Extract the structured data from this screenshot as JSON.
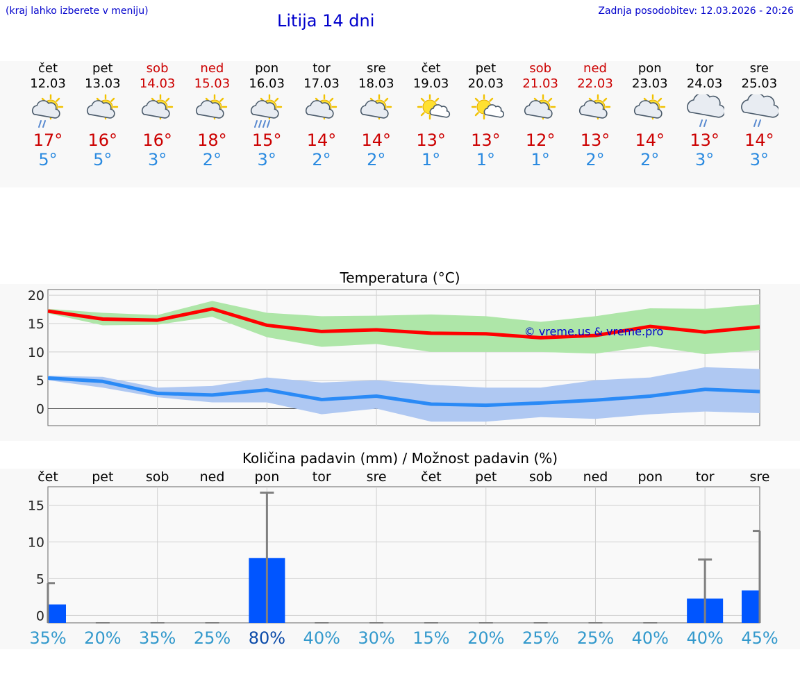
{
  "header": {
    "menu_note": "(kraj lahko izberete v meniju)",
    "title": "Litija 14 dni",
    "update": "Zadnja posodobitev: 12.03.2026 - 20:26"
  },
  "days": [
    {
      "name": "čet",
      "date": "12.03",
      "tmax": "17°",
      "tmin": "5°",
      "icon": "sun-cloud-rain-icon",
      "weekend": false
    },
    {
      "name": "pet",
      "date": "13.03",
      "tmax": "16°",
      "tmin": "5°",
      "icon": "sun-cloud-icon",
      "weekend": false
    },
    {
      "name": "sob",
      "date": "14.03",
      "tmax": "16°",
      "tmin": "3°",
      "icon": "sun-cloud-icon",
      "weekend": true
    },
    {
      "name": "ned",
      "date": "15.03",
      "tmax": "18°",
      "tmin": "2°",
      "icon": "sun-cloud-icon",
      "weekend": true
    },
    {
      "name": "pon",
      "date": "16.03",
      "tmax": "15°",
      "tmin": "3°",
      "icon": "sun-cloud-heavy-rain-icon",
      "weekend": false
    },
    {
      "name": "tor",
      "date": "17.03",
      "tmax": "14°",
      "tmin": "2°",
      "icon": "sun-cloud-icon",
      "weekend": false
    },
    {
      "name": "sre",
      "date": "18.03",
      "tmax": "14°",
      "tmin": "2°",
      "icon": "sun-cloud-icon",
      "weekend": false
    },
    {
      "name": "čet",
      "date": "19.03",
      "tmax": "13°",
      "tmin": "1°",
      "icon": "sun-small-cloud-icon",
      "weekend": false
    },
    {
      "name": "pet",
      "date": "20.03",
      "tmax": "13°",
      "tmin": "1°",
      "icon": "sun-small-cloud-icon",
      "weekend": false
    },
    {
      "name": "sob",
      "date": "21.03",
      "tmax": "12°",
      "tmin": "1°",
      "icon": "sun-cloud-icon",
      "weekend": true
    },
    {
      "name": "ned",
      "date": "22.03",
      "tmax": "13°",
      "tmin": "2°",
      "icon": "sun-cloud-icon",
      "weekend": true
    },
    {
      "name": "pon",
      "date": "23.03",
      "tmax": "14°",
      "tmin": "2°",
      "icon": "sun-cloud-icon",
      "weekend": false
    },
    {
      "name": "tor",
      "date": "24.03",
      "tmax": "13°",
      "tmin": "3°",
      "icon": "cloud-rain-icon",
      "weekend": false
    },
    {
      "name": "sre",
      "date": "25.03",
      "tmax": "14°",
      "tmin": "3°",
      "icon": "cloud-rain-icon",
      "weekend": false
    }
  ],
  "colors": {
    "header_text": "#0000cc",
    "max_temp": "#cc0000",
    "min_temp": "#2a8ae0",
    "max_line": "#ff0000",
    "max_band": "#aee6a8",
    "min_line": "#2a8af6",
    "min_band": "#afc8f2",
    "precip_bar": "#0055ff",
    "precip_error": "#808080",
    "chance_normal": "#3399cc",
    "chance_high": "#0a4aa8"
  },
  "chart_data": [
    {
      "type": "line",
      "title": "Temperatura (°C)",
      "watermark": "© vreme.us & vreme.pro",
      "ylim": [
        -3,
        21
      ],
      "yticks": [
        0,
        5,
        10,
        15,
        20
      ],
      "x": [
        0,
        1,
        2,
        3,
        4,
        5,
        6,
        7,
        8,
        9,
        10,
        11,
        12,
        13
      ],
      "series": [
        {
          "name": "max",
          "values": [
            17.2,
            15.8,
            15.6,
            17.6,
            14.7,
            13.6,
            13.9,
            13.3,
            13.2,
            12.5,
            12.9,
            14.5,
            13.5,
            14.4
          ],
          "band_low": [
            16.8,
            14.7,
            14.8,
            16.2,
            12.6,
            10.9,
            11.4,
            10.0,
            10.0,
            10.0,
            9.7,
            11.0,
            9.6,
            10.3
          ],
          "band_high": [
            17.6,
            16.9,
            16.5,
            19.0,
            16.9,
            16.3,
            16.4,
            16.6,
            16.3,
            15.3,
            16.3,
            17.7,
            17.6,
            18.4
          ]
        },
        {
          "name": "min",
          "values": [
            5.4,
            4.8,
            2.7,
            2.4,
            3.3,
            1.6,
            2.2,
            0.8,
            0.6,
            1.0,
            1.5,
            2.2,
            3.4,
            3.0
          ],
          "band_low": [
            5.0,
            3.7,
            2.0,
            1.1,
            1.1,
            -1.0,
            0.0,
            -2.3,
            -2.3,
            -1.5,
            -1.8,
            -1.0,
            -0.5,
            -0.8
          ],
          "band_high": [
            5.8,
            5.6,
            3.7,
            4.0,
            5.5,
            4.6,
            5.0,
            4.2,
            3.7,
            3.7,
            5.0,
            5.5,
            7.3,
            7.0
          ]
        }
      ]
    },
    {
      "type": "bar",
      "title": "Količina padavin (mm) / Možnost padavin (%)",
      "ylim": [
        -1,
        17.5
      ],
      "yticks": [
        0,
        5,
        10,
        15
      ],
      "categories": [
        "čet",
        "pet",
        "sob",
        "ned",
        "pon",
        "tor",
        "sre",
        "čet",
        "pet",
        "sob",
        "ned",
        "pon",
        "tor",
        "sre"
      ],
      "values": [
        1.5,
        0,
        0,
        0,
        7.8,
        0,
        0,
        0,
        0,
        0,
        0,
        0,
        2.3,
        3.4
      ],
      "error_high": [
        4.4,
        0,
        0,
        0,
        16.7,
        0,
        0,
        0,
        0,
        0,
        0,
        0,
        7.6,
        11.5
      ],
      "chance": [
        "35%",
        "20%",
        "35%",
        "25%",
        "80%",
        "40%",
        "30%",
        "15%",
        "20%",
        "25%",
        "25%",
        "40%",
        "40%",
        "45%"
      ]
    }
  ]
}
